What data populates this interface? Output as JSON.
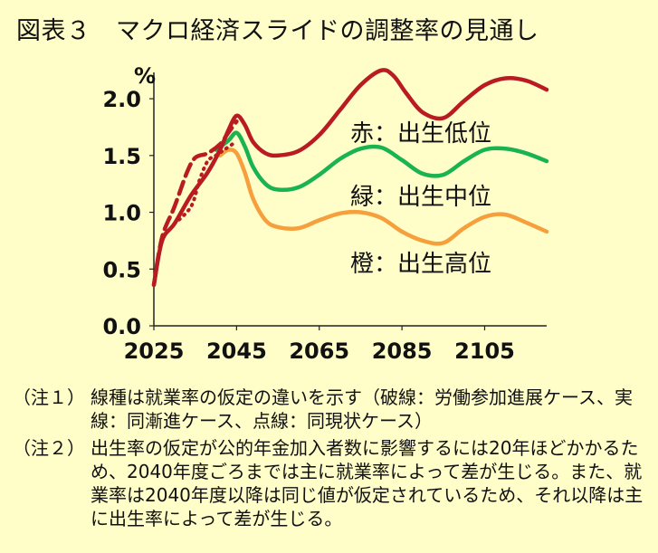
{
  "title": "図表３　マクロ経済スライドの調整率の見通し",
  "chart_data": {
    "type": "line",
    "unit": "%",
    "ylim": [
      0,
      2.2
    ],
    "xlim": [
      2025,
      2120
    ],
    "y_ticks": [
      "0.0",
      "0.5",
      "1.0",
      "1.5",
      "2.0"
    ],
    "x_ticks": [
      "2025",
      "2045",
      "2065",
      "2085",
      "2105"
    ],
    "grid": false,
    "series": [
      {
        "name": "赤：出生低位",
        "color": "#b81c22",
        "x": [
          2025,
          2027,
          2030,
          2034,
          2038,
          2041,
          2043,
          2045,
          2047,
          2049,
          2052,
          2055,
          2060,
          2065,
          2070,
          2075,
          2080,
          2083,
          2086,
          2090,
          2095,
          2100,
          2105,
          2110,
          2115,
          2120
        ],
        "y": [
          0.36,
          0.75,
          0.9,
          1.15,
          1.35,
          1.55,
          1.72,
          1.85,
          1.77,
          1.62,
          1.52,
          1.5,
          1.54,
          1.68,
          1.9,
          2.12,
          2.25,
          2.2,
          2.05,
          1.88,
          1.83,
          1.98,
          2.12,
          2.18,
          2.16,
          2.08
        ]
      },
      {
        "name": "緑：出生中位",
        "color": "#1ab351",
        "x": [
          2040,
          2043,
          2045,
          2047,
          2049,
          2052,
          2055,
          2060,
          2065,
          2070,
          2075,
          2080,
          2085,
          2090,
          2095,
          2100,
          2105,
          2110,
          2115,
          2120
        ],
        "y": [
          1.55,
          1.63,
          1.7,
          1.58,
          1.4,
          1.25,
          1.2,
          1.22,
          1.33,
          1.47,
          1.56,
          1.57,
          1.46,
          1.34,
          1.33,
          1.45,
          1.55,
          1.56,
          1.52,
          1.45
        ]
      },
      {
        "name": "橙：出生高位",
        "color": "#f5a03c",
        "x": [
          2041,
          2043,
          2045,
          2047,
          2049,
          2052,
          2055,
          2060,
          2065,
          2070,
          2075,
          2080,
          2085,
          2090,
          2095,
          2100,
          2105,
          2110,
          2115,
          2120
        ],
        "y": [
          1.5,
          1.55,
          1.52,
          1.35,
          1.12,
          0.93,
          0.87,
          0.86,
          0.93,
          0.99,
          1.0,
          0.95,
          0.83,
          0.75,
          0.73,
          0.86,
          0.96,
          0.98,
          0.91,
          0.83
        ]
      },
      {
        "name": "赤（破線）",
        "color": "#b81c22",
        "dash": "dashed",
        "x": [
          2025,
          2027,
          2030,
          2033,
          2035,
          2038,
          2041,
          2043,
          2045
        ],
        "y": [
          0.36,
          0.78,
          1.05,
          1.35,
          1.48,
          1.52,
          1.6,
          1.7,
          1.8
        ]
      },
      {
        "name": "赤（点線）",
        "color": "#b81c22",
        "dash": "dotted",
        "x": [
          2030,
          2034,
          2036,
          2038,
          2040,
          2042,
          2044
        ],
        "y": [
          0.9,
          1.05,
          1.28,
          1.45,
          1.5,
          1.55,
          1.6
        ]
      }
    ],
    "labels": [
      "赤：出生低位",
      "緑：出生中位",
      "橙：出生高位"
    ]
  },
  "notes": [
    {
      "tag": "（注１）",
      "text": "線種は就業率の仮定の違いを示す（破線：労働参加進展ケース、実線：同漸進ケース、点線：同現状ケース）"
    },
    {
      "tag": "（注２）",
      "text": "出生率の仮定が公的年金加入者数に影響するには20年ほどかかるため、2040年度ごろまでは主に就業率によって差が生じる。また、就業率は2040年度以降は同じ値が仮定されているため、それ以降は主に出生率によって差が生じる。"
    }
  ]
}
